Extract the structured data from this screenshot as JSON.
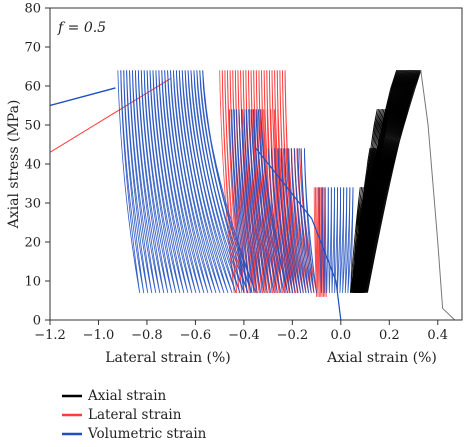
{
  "chart_data": {
    "type": "line",
    "annotation": "f = 0.5",
    "xlabel_left": "Lateral strain (%)",
    "xlabel_right": "Axial strain (%)",
    "ylabel": "Axial stress (MPa)",
    "xlim": [
      -1.2,
      0.5
    ],
    "ylim": [
      0,
      80
    ],
    "x_ticks": [
      -1.2,
      -1.0,
      -0.8,
      -0.6,
      -0.4,
      -0.2,
      0.0,
      0.2,
      0.4
    ],
    "x_tick_labels": [
      "−1.2",
      "−1.0",
      "−0.8",
      "−0.6",
      "−0.4",
      "−0.2",
      "0.0",
      "0.2",
      "0.4"
    ],
    "y_ticks": [
      0,
      10,
      20,
      30,
      40,
      50,
      60,
      70,
      80
    ],
    "y_tick_labels": [
      "0",
      "10",
      "20",
      "30",
      "40",
      "50",
      "60",
      "70",
      "80"
    ],
    "grid": false,
    "legend_position": "below",
    "colors": {
      "axial": "#000000",
      "lateral": "#ff3b3b",
      "volumetric": "#1f4fbf"
    },
    "series": [
      {
        "name": "Axial strain",
        "color": "#000000",
        "stages": [
          {
            "peak": 64,
            "valley": 7,
            "x_start": 0.04,
            "x_end": 0.1,
            "peak_x_start": 0.23,
            "peak_x_end": 0.33,
            "cycles": 26
          },
          {
            "peak": 54,
            "valley": 7,
            "x_start": 0.05,
            "x_end": 0.09,
            "peak_x_start": 0.15,
            "peak_x_end": 0.2,
            "cycles": 10
          },
          {
            "peak": 44,
            "valley": 7,
            "x_start": 0.05,
            "x_end": 0.08,
            "peak_x_start": 0.12,
            "peak_x_end": 0.16,
            "cycles": 8
          },
          {
            "peak": 34,
            "valley": 7,
            "x_start": 0.04,
            "x_end": 0.07,
            "peak_x_start": 0.08,
            "peak_x_end": 0.12,
            "cycles": 8
          }
        ],
        "post_peak": [
          [
            0.33,
            64
          ],
          [
            0.36,
            50
          ],
          [
            0.4,
            20
          ],
          [
            0.42,
            3
          ],
          [
            0.47,
            0
          ]
        ]
      },
      {
        "name": "Lateral strain",
        "color": "#ff3b3b",
        "initial": [
          [
            -1.2,
            43
          ],
          [
            -0.7,
            62
          ]
        ],
        "stages": [
          {
            "peak": 64,
            "valley": 7,
            "x_peak_start": -0.5,
            "x_peak_end": -0.23,
            "x_valley_start": -0.44,
            "x_valley_end": -0.18,
            "cycles": 26
          },
          {
            "peak": 54,
            "valley": 7,
            "x_peak_start": -0.42,
            "x_peak_end": -0.26,
            "x_valley_start": -0.35,
            "x_valley_end": -0.2,
            "cycles": 12
          },
          {
            "peak": 44,
            "valley": 7,
            "x_peak_start": -0.27,
            "x_peak_end": -0.17,
            "x_valley_start": -0.2,
            "x_valley_end": -0.1,
            "cycles": 10
          },
          {
            "peak": 34,
            "valley": 6,
            "x_peak_start": -0.11,
            "x_peak_end": -0.07,
            "x_valley_start": -0.1,
            "x_valley_end": -0.06,
            "cycles": 8
          }
        ]
      },
      {
        "name": "Volumetric strain",
        "color": "#1f4fbf",
        "initial": [
          [
            -1.2,
            55
          ],
          [
            -0.93,
            59.5
          ]
        ],
        "stages": [
          {
            "peak": 64,
            "valley": 7,
            "x_peak_start": -0.92,
            "x_peak_end": -0.57,
            "x_valley_start": -0.83,
            "x_valley_end": -0.35,
            "cycles": 30
          },
          {
            "peak": 54,
            "valley": 7,
            "x_peak_start": -0.46,
            "x_peak_end": -0.33,
            "x_valley_start": -0.4,
            "x_valley_end": -0.22,
            "cycles": 14
          },
          {
            "peak": 44,
            "valley": 7,
            "x_peak_start": -0.3,
            "x_peak_end": -0.15,
            "x_valley_start": -0.22,
            "x_valley_end": -0.1,
            "cycles": 12
          },
          {
            "peak": 34,
            "valley": 7,
            "x_peak_start": -0.09,
            "x_peak_end": 0.05,
            "x_valley_start": -0.08,
            "x_valley_end": 0.04,
            "cycles": 12
          }
        ],
        "post_peak": [
          [
            -0.35,
            44
          ],
          [
            -0.12,
            26
          ],
          [
            -0.02,
            10
          ],
          [
            0.0,
            0
          ]
        ]
      }
    ]
  }
}
